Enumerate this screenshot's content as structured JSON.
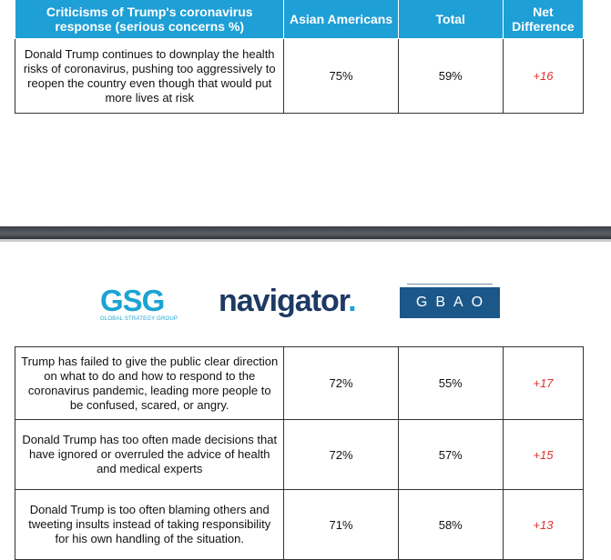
{
  "table1": {
    "headers": {
      "criticism": "Criticisms of Trump's coronavirus response (serious concerns %)",
      "asian_americans": "Asian Americans",
      "total": "Total",
      "net_difference": "Net Difference"
    },
    "rows": [
      {
        "statement": "Donald Trump continues to downplay the health risks of coronavirus, pushing too aggressively to reopen the country even though that would put more lives at risk",
        "asian_americans": "75%",
        "total": "59%",
        "net": "+16"
      }
    ]
  },
  "logos": {
    "gsg_main": "GSG",
    "gsg_sub": "GLOBAL STRATEGY GROUP",
    "navigator": "navigator",
    "navigator_dot": ".",
    "gbao": "GBAO"
  },
  "table2": {
    "rows": [
      {
        "statement": "Trump has failed to give the public clear direction on what to do and how to respond to the coronavirus pandemic, leading more people to be confused, scared, or angry.",
        "asian_americans": "72%",
        "total": "55%",
        "net": "+17"
      },
      {
        "statement": "Donald Trump has too often made decisions that have ignored or overruled the advice of health and medical experts",
        "asian_americans": "72%",
        "total": "57%",
        "net": "+15"
      },
      {
        "statement": "Donald Trump is too often blaming others and tweeting insults instead of taking responsibility for his own handling of the situation.",
        "asian_americans": "71%",
        "total": "58%",
        "net": "+13"
      }
    ]
  },
  "colors": {
    "header_bg": "#1e9fd6",
    "net_text": "#e0302a",
    "gsg": "#1ba3d4",
    "navigator": "#1d3a63",
    "gbao_bg": "#1b5788"
  }
}
